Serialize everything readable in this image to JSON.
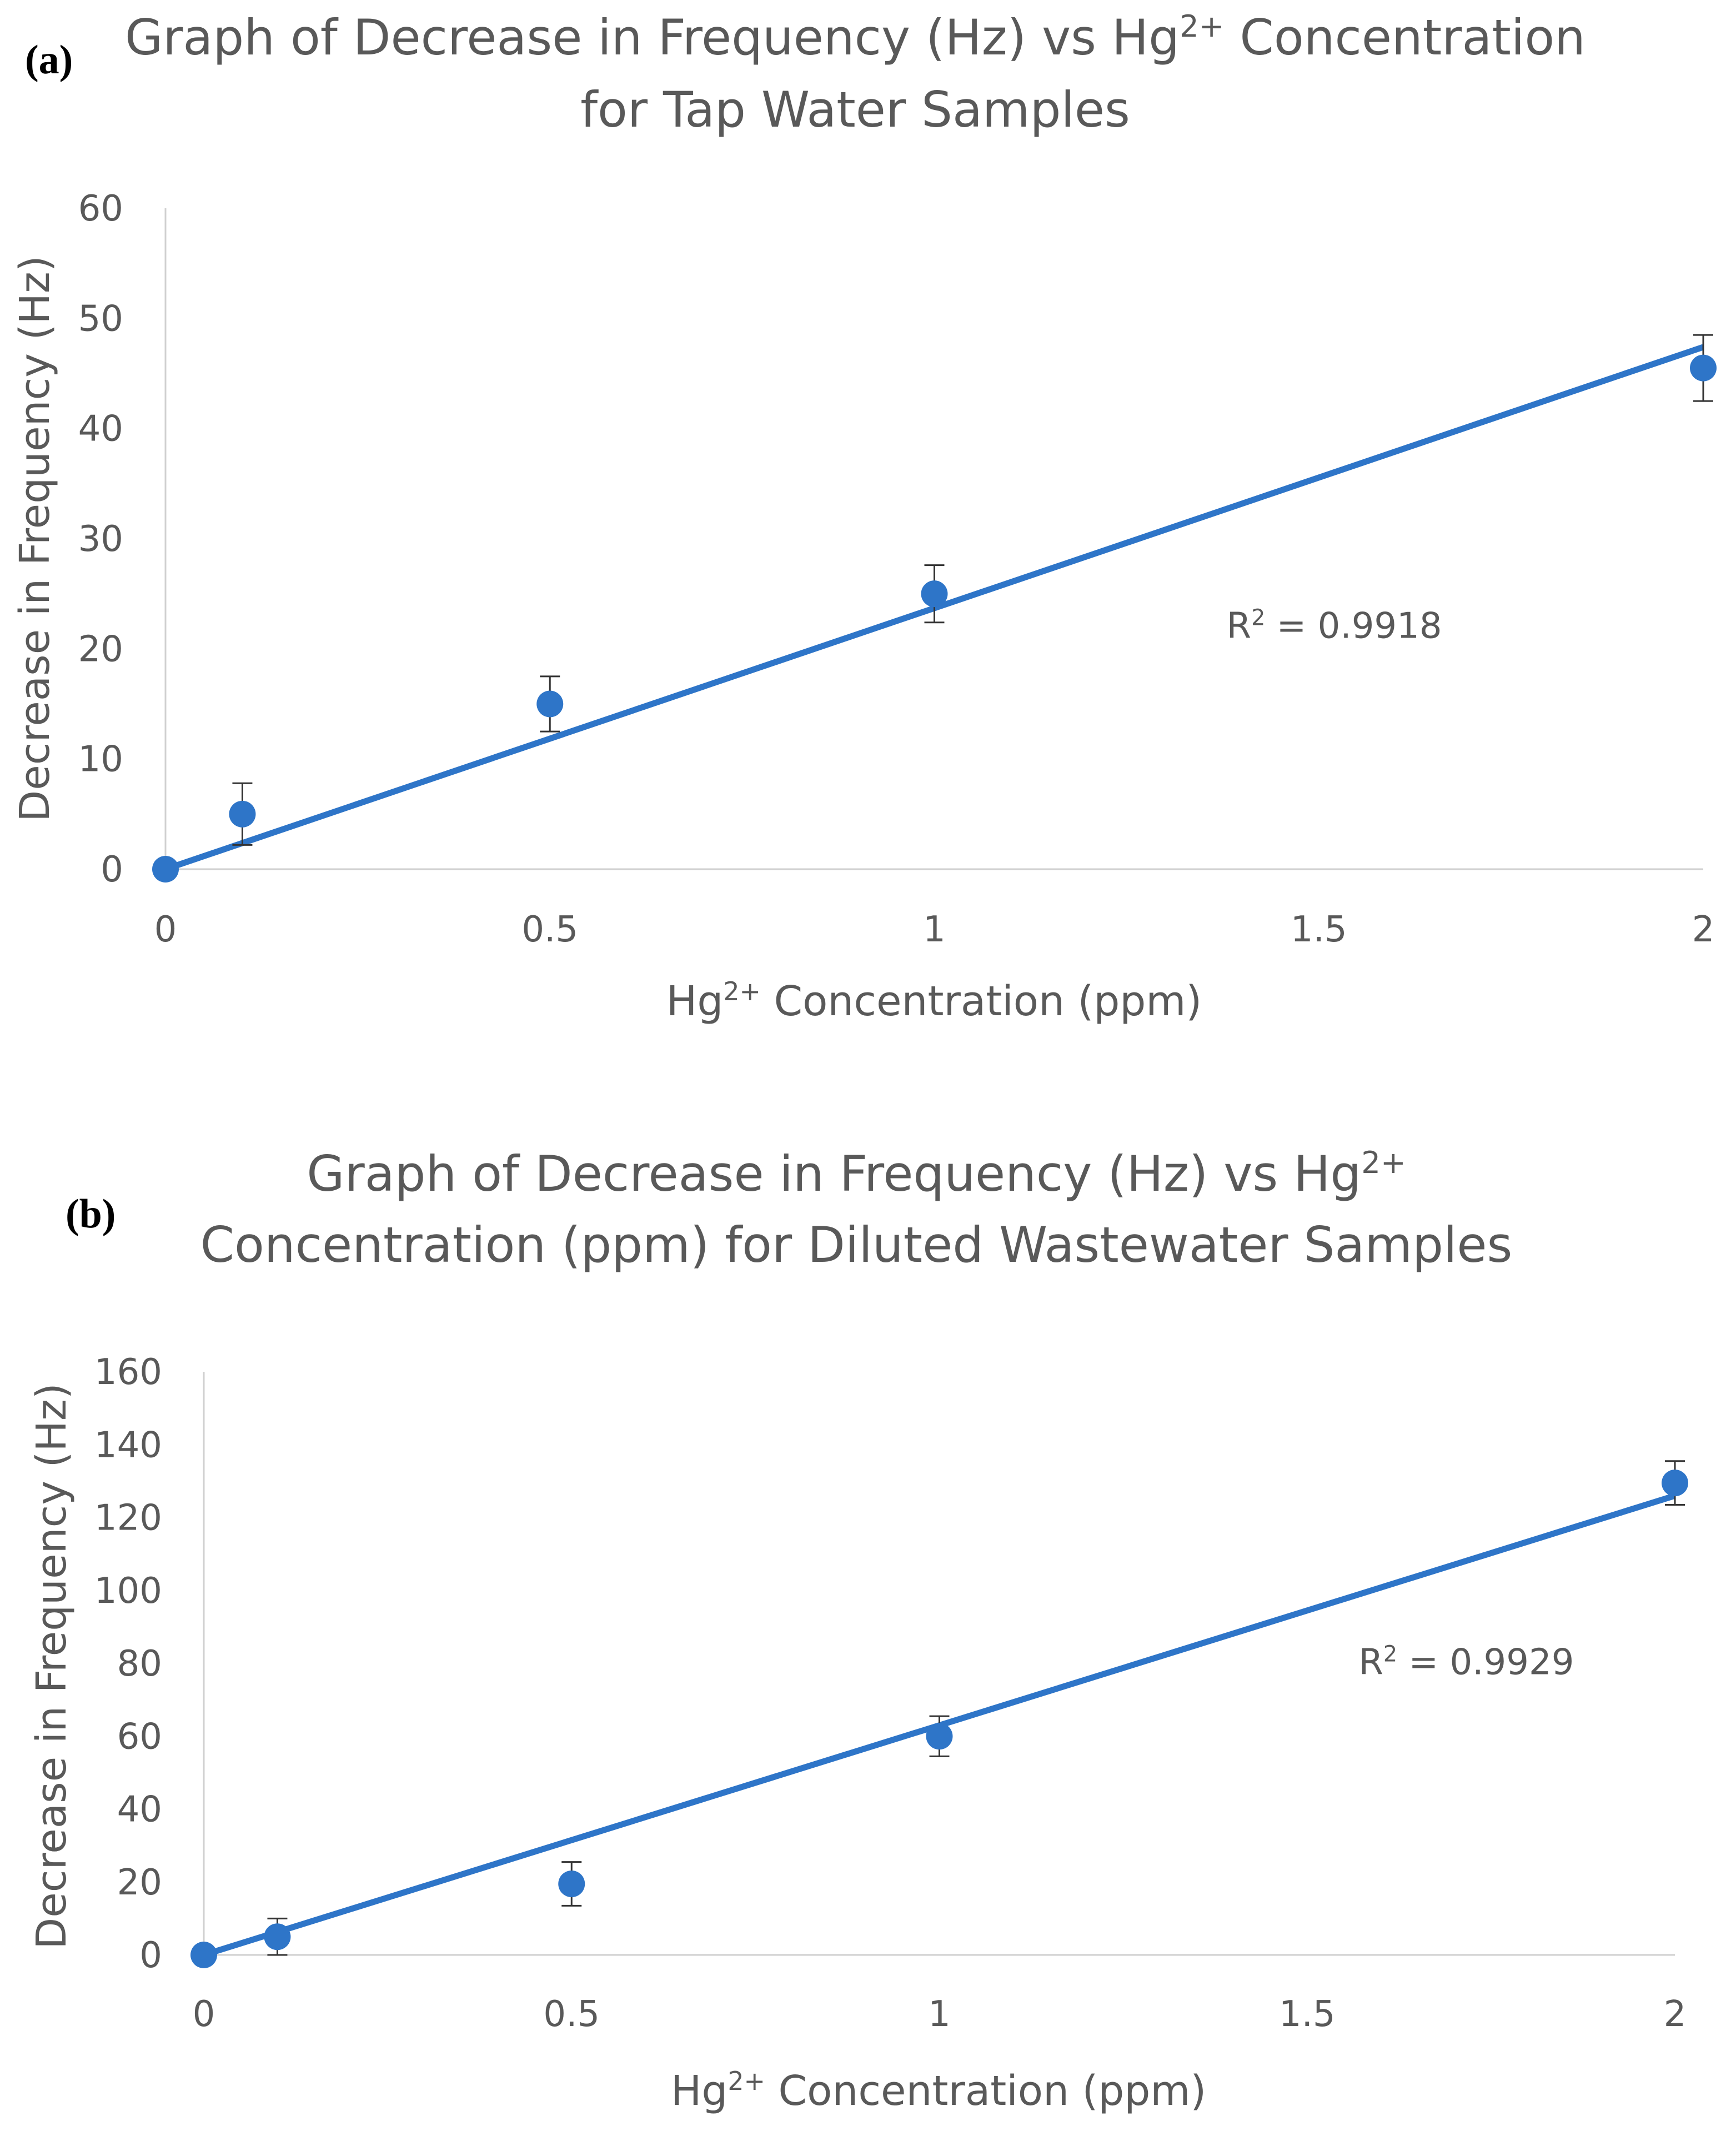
{
  "chart_data": [
    {
      "type": "scatter",
      "panel_label": "(a)",
      "title_lines": [
        [
          "Graph of Decrease in Frequency (Hz) vs Hg",
          "2+",
          " Concentration"
        ],
        [
          "for Tap Water Samples",
          "",
          ""
        ]
      ],
      "xlabel_parts": [
        "Hg",
        "2+",
        " Concentration (ppm)"
      ],
      "ylabel": "Decrease in Frequency (Hz)",
      "xlim": [
        0,
        2
      ],
      "ylim": [
        0,
        60
      ],
      "xticks": [
        0,
        0.5,
        1,
        1.5,
        2
      ],
      "xtick_labels": [
        "0",
        "0.5",
        "1",
        "1.5",
        "2"
      ],
      "yticks": [
        0,
        10,
        20,
        30,
        40,
        50,
        60
      ],
      "ytick_labels": [
        "0",
        "10",
        "20",
        "30",
        "40",
        "50",
        "60"
      ],
      "series": [
        {
          "name": "Tap Water",
          "x": [
            0,
            0.1,
            0.5,
            1,
            2
          ],
          "y": [
            0,
            5,
            15,
            25,
            45.5
          ],
          "error": [
            0,
            2.8,
            2.5,
            2.6,
            3
          ],
          "color": "#2E75C8"
        }
      ],
      "trendline": {
        "x": [
          0,
          2
        ],
        "y": [
          0,
          47.4
        ],
        "color": "#2E75C8"
      },
      "r2_parts": [
        "R",
        "2",
        " = 0.9918"
      ],
      "r2_position": {
        "x": 1.38,
        "y": 21
      }
    },
    {
      "type": "scatter",
      "panel_label": "(b)",
      "title_lines": [
        [
          "Graph of Decrease in Frequency (Hz) vs Hg",
          "2+",
          ""
        ],
        [
          "Concentration (ppm) for Diluted Wastewater Samples",
          "",
          ""
        ]
      ],
      "xlabel_parts": [
        "Hg",
        "2+",
        " Concentration (ppm)"
      ],
      "ylabel": "Decrease in Frequency (Hz)",
      "xlim": [
        0,
        2
      ],
      "ylim": [
        0,
        160
      ],
      "xticks": [
        0,
        0.5,
        1,
        1.5,
        2
      ],
      "xtick_labels": [
        "0",
        "0.5",
        "1",
        "1.5",
        "2"
      ],
      "yticks": [
        0,
        20,
        40,
        60,
        80,
        100,
        120,
        140,
        160
      ],
      "ytick_labels": [
        "0",
        "20",
        "40",
        "60",
        "80",
        "100",
        "120",
        "140",
        "160"
      ],
      "series": [
        {
          "name": "Diluted Wastewater",
          "x": [
            0,
            0.1,
            0.5,
            1,
            2
          ],
          "y": [
            0,
            5,
            19.5,
            60,
            129.5
          ],
          "error": [
            0,
            5,
            6,
            5.5,
            6
          ],
          "color": "#2E75C8"
        }
      ],
      "trendline": {
        "x": [
          0,
          2
        ],
        "y": [
          0,
          126
        ],
        "color": "#2E75C8"
      },
      "r2_parts": [
        "R",
        "2",
        " = 0.9929"
      ],
      "r2_position": {
        "x": 1.57,
        "y": 77
      }
    }
  ]
}
